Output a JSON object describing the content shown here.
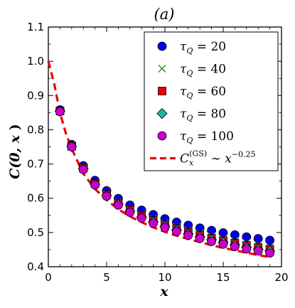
{
  "chart_data": {
    "type": "scatter",
    "title": "(a)",
    "xlabel": "x",
    "ylabel_prefix": "C(0,",
    "ylabel_var": "x",
    "ylabel_suffix": ")",
    "xlim": [
      0,
      20
    ],
    "ylim": [
      0.4,
      1.1
    ],
    "xticks": [
      "0",
      "5",
      "10",
      "15",
      "20"
    ],
    "yticks": [
      "0.4",
      "0.5",
      "0.6",
      "0.7",
      "0.8",
      "0.9",
      "1.0",
      "1.1"
    ],
    "grid": false,
    "legend_position": "top-right",
    "x": [
      1,
      2,
      3,
      4,
      5,
      6,
      7,
      8,
      9,
      10,
      11,
      12,
      13,
      14,
      15,
      16,
      17,
      18,
      19
    ],
    "series": [
      {
        "name": "τ_Q = 20",
        "label_var": "τ",
        "label_sub": "Q",
        "label_rest": " = 20",
        "marker": "circle",
        "color": "#0000ee",
        "values": [
          0.858,
          0.757,
          0.695,
          0.652,
          0.622,
          0.599,
          0.58,
          0.565,
          0.552,
          0.54,
          0.53,
          0.521,
          0.513,
          0.506,
          0.499,
          0.493,
          0.487,
          0.482,
          0.477
        ]
      },
      {
        "name": "τ_Q = 40",
        "label_var": "τ",
        "label_sub": "Q",
        "label_rest": " = 40",
        "marker": "x",
        "color": "#228b22",
        "values": [
          0.856,
          0.753,
          0.69,
          0.646,
          0.614,
          0.59,
          0.57,
          0.554,
          0.54,
          0.528,
          0.517,
          0.507,
          0.498,
          0.49,
          0.482,
          0.476,
          0.47,
          0.464,
          0.459
        ]
      },
      {
        "name": "τ_Q = 60",
        "label_var": "τ",
        "label_sub": "Q",
        "label_rest": " = 60",
        "marker": "square",
        "color": "#ee0000",
        "values": [
          0.855,
          0.752,
          0.688,
          0.643,
          0.611,
          0.586,
          0.566,
          0.549,
          0.535,
          0.522,
          0.511,
          0.501,
          0.492,
          0.483,
          0.476,
          0.469,
          0.462,
          0.456,
          0.451
        ]
      },
      {
        "name": "τ_Q = 80",
        "label_var": "τ",
        "label_sub": "Q",
        "label_rest": " = 80",
        "marker": "diamond",
        "color": "#20b2aa",
        "values": [
          0.854,
          0.751,
          0.686,
          0.641,
          0.608,
          0.583,
          0.562,
          0.545,
          0.531,
          0.518,
          0.507,
          0.496,
          0.487,
          0.479,
          0.471,
          0.464,
          0.457,
          0.451,
          0.446
        ]
      },
      {
        "name": "τ_Q = 100",
        "label_var": "τ",
        "label_sub": "Q",
        "label_rest": " = 100",
        "marker": "circle",
        "color": "#cc00cc",
        "values": [
          0.853,
          0.75,
          0.684,
          0.639,
          0.606,
          0.58,
          0.559,
          0.542,
          0.527,
          0.514,
          0.503,
          0.492,
          0.483,
          0.474,
          0.466,
          0.459,
          0.452,
          0.446,
          0.44
        ]
      }
    ],
    "reference_curve": {
      "name": "C_x^(GS) ~ x^-0.25",
      "label_main": "C",
      "label_sub": "x",
      "label_sup": "(GS)",
      "label_mid": " ∼ ",
      "label_base": "x",
      "label_exp": "−0.25",
      "style": "dashed",
      "color": "#ee0000",
      "x": [
        0,
        0.5,
        1,
        1.5,
        2,
        3,
        4,
        5,
        6,
        7,
        8,
        9,
        10,
        11,
        12,
        13,
        14,
        15,
        16,
        17,
        18,
        19
      ],
      "values": [
        1.0,
        0.935,
        0.85,
        0.79,
        0.745,
        0.672,
        0.627,
        0.595,
        0.568,
        0.547,
        0.53,
        0.515,
        0.502,
        0.491,
        0.481,
        0.472,
        0.463,
        0.455,
        0.448,
        0.441,
        0.434,
        0.428
      ]
    }
  }
}
